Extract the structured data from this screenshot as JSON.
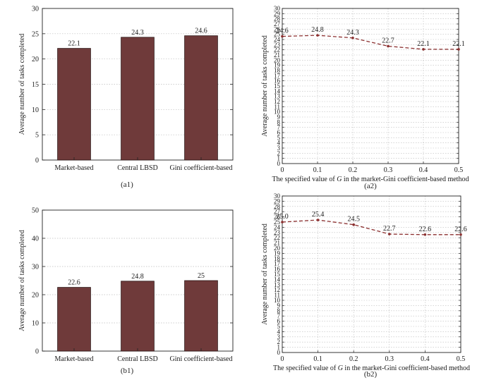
{
  "captions": {
    "a1": "(a1)",
    "a2": "(a2)",
    "b1": "(b1)",
    "b2": "(b2)"
  },
  "colors": {
    "bar_fill": "#6f3a3a",
    "line": "#8b2f2f",
    "grid": "#bdbdbd"
  },
  "chart_data": [
    {
      "id": "a1",
      "type": "bar",
      "categories": [
        "Market-based",
        "Central LBSD",
        "Gini coefficient-based"
      ],
      "values": [
        22.1,
        24.3,
        24.6
      ],
      "data_labels": [
        "22.1",
        "24.3",
        "24.6"
      ],
      "ylabel": "Average number of tasks completed",
      "ylim": [
        0,
        30
      ],
      "yticks": [
        0,
        5,
        10,
        15,
        20,
        25,
        30
      ],
      "grid": true
    },
    {
      "id": "a2",
      "type": "line",
      "x": [
        0,
        0.1,
        0.2,
        0.3,
        0.4,
        0.5
      ],
      "values": [
        24.6,
        24.8,
        24.3,
        22.7,
        22.1,
        22.1
      ],
      "data_labels": [
        "24.6",
        "24.8",
        "24.3",
        "22.7",
        "22.1",
        "22.1"
      ],
      "xlabel_parts": [
        "The specified value of ",
        "G",
        " in the market-Gini coefficient-based method"
      ],
      "ylabel": "Average number of tasks completed",
      "xlim": [
        0,
        0.5
      ],
      "xticks": [
        "0",
        "0.1",
        "0.2",
        "0.3",
        "0.4",
        "0.5"
      ],
      "ylim": [
        0,
        30
      ],
      "ytick_step": 1,
      "grid": true,
      "line_style": "dashed",
      "marker": "dot"
    },
    {
      "id": "b1",
      "type": "bar",
      "categories": [
        "Market-based",
        "Central LBSD",
        "Gini coefficient-based"
      ],
      "values": [
        22.6,
        24.8,
        25
      ],
      "data_labels": [
        "22.6",
        "24.8",
        "25"
      ],
      "ylabel": "Average number of tasks completed",
      "ylim": [
        0,
        50
      ],
      "yticks": [
        0,
        10,
        20,
        30,
        40,
        50
      ],
      "grid": true
    },
    {
      "id": "b2",
      "type": "line",
      "x": [
        0,
        0.1,
        0.2,
        0.3,
        0.4,
        0.5
      ],
      "values": [
        25.0,
        25.4,
        24.5,
        22.7,
        22.6,
        22.6
      ],
      "data_labels": [
        "25.0",
        "25.4",
        "24.5",
        "22.7",
        "22.6",
        "22.6"
      ],
      "xlabel_parts": [
        "The specified value of ",
        "G",
        " in the market-Gini coefficient-based method"
      ],
      "ylabel": "Average number of tasks completed",
      "xlim": [
        0,
        0.5
      ],
      "xticks": [
        "0",
        "0.1",
        "0.2",
        "0.3",
        "0.4",
        "0.5"
      ],
      "ylim": [
        0,
        30
      ],
      "ytick_step": 1,
      "grid": true,
      "line_style": "dashed",
      "marker": "dot"
    }
  ]
}
